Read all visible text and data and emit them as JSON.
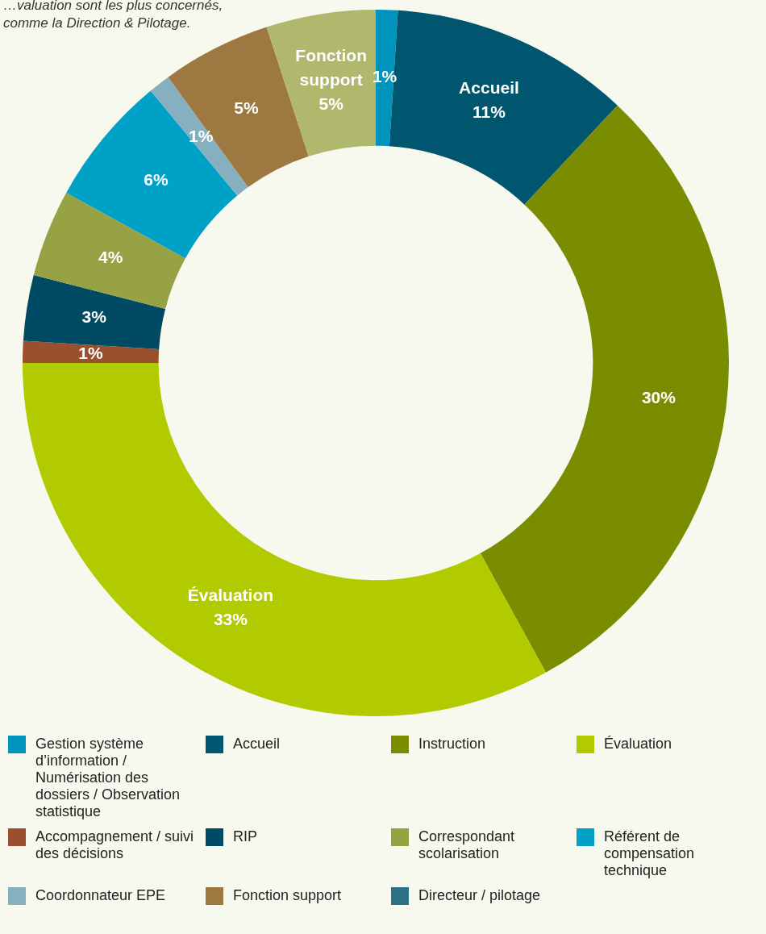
{
  "chart_data": {
    "type": "donut",
    "annotations": [
      "…valuation sont les plus concernés,",
      "comme la Direction & Pilotage."
    ],
    "categories": [
      "Gestion système d’information / Numérisation des dossiers / Observation statistique",
      "Accueil",
      "Instruction",
      "Évaluation",
      "Accompagnement / suivi des décisions",
      "RIP",
      "Correspondant scolarisation",
      "Référent de compensation technique",
      "Coordonnateur EPE",
      "Fonction support",
      null,
      "Directeur / pilotage"
    ],
    "values": [
      1,
      11,
      30,
      33,
      1,
      3,
      4,
      6,
      1,
      5,
      5,
      0
    ],
    "colors": [
      "#0093bb",
      "#00566e",
      "#7a8d00",
      "#b1cb00",
      "#9a4f2f",
      "#004a63",
      "#97a244",
      "#00a1c7",
      "#86afc0",
      "#9d7941",
      "#b0b86e",
      "#2e7087"
    ],
    "value_labels": [
      "1%",
      "Accueil\n11%",
      "30%",
      "Évaluation\n33%",
      "1%",
      "3%",
      "4%",
      "6%",
      "1%",
      "5%",
      "Fonction\nsupport\n5%",
      null
    ],
    "legend": "bottom"
  }
}
